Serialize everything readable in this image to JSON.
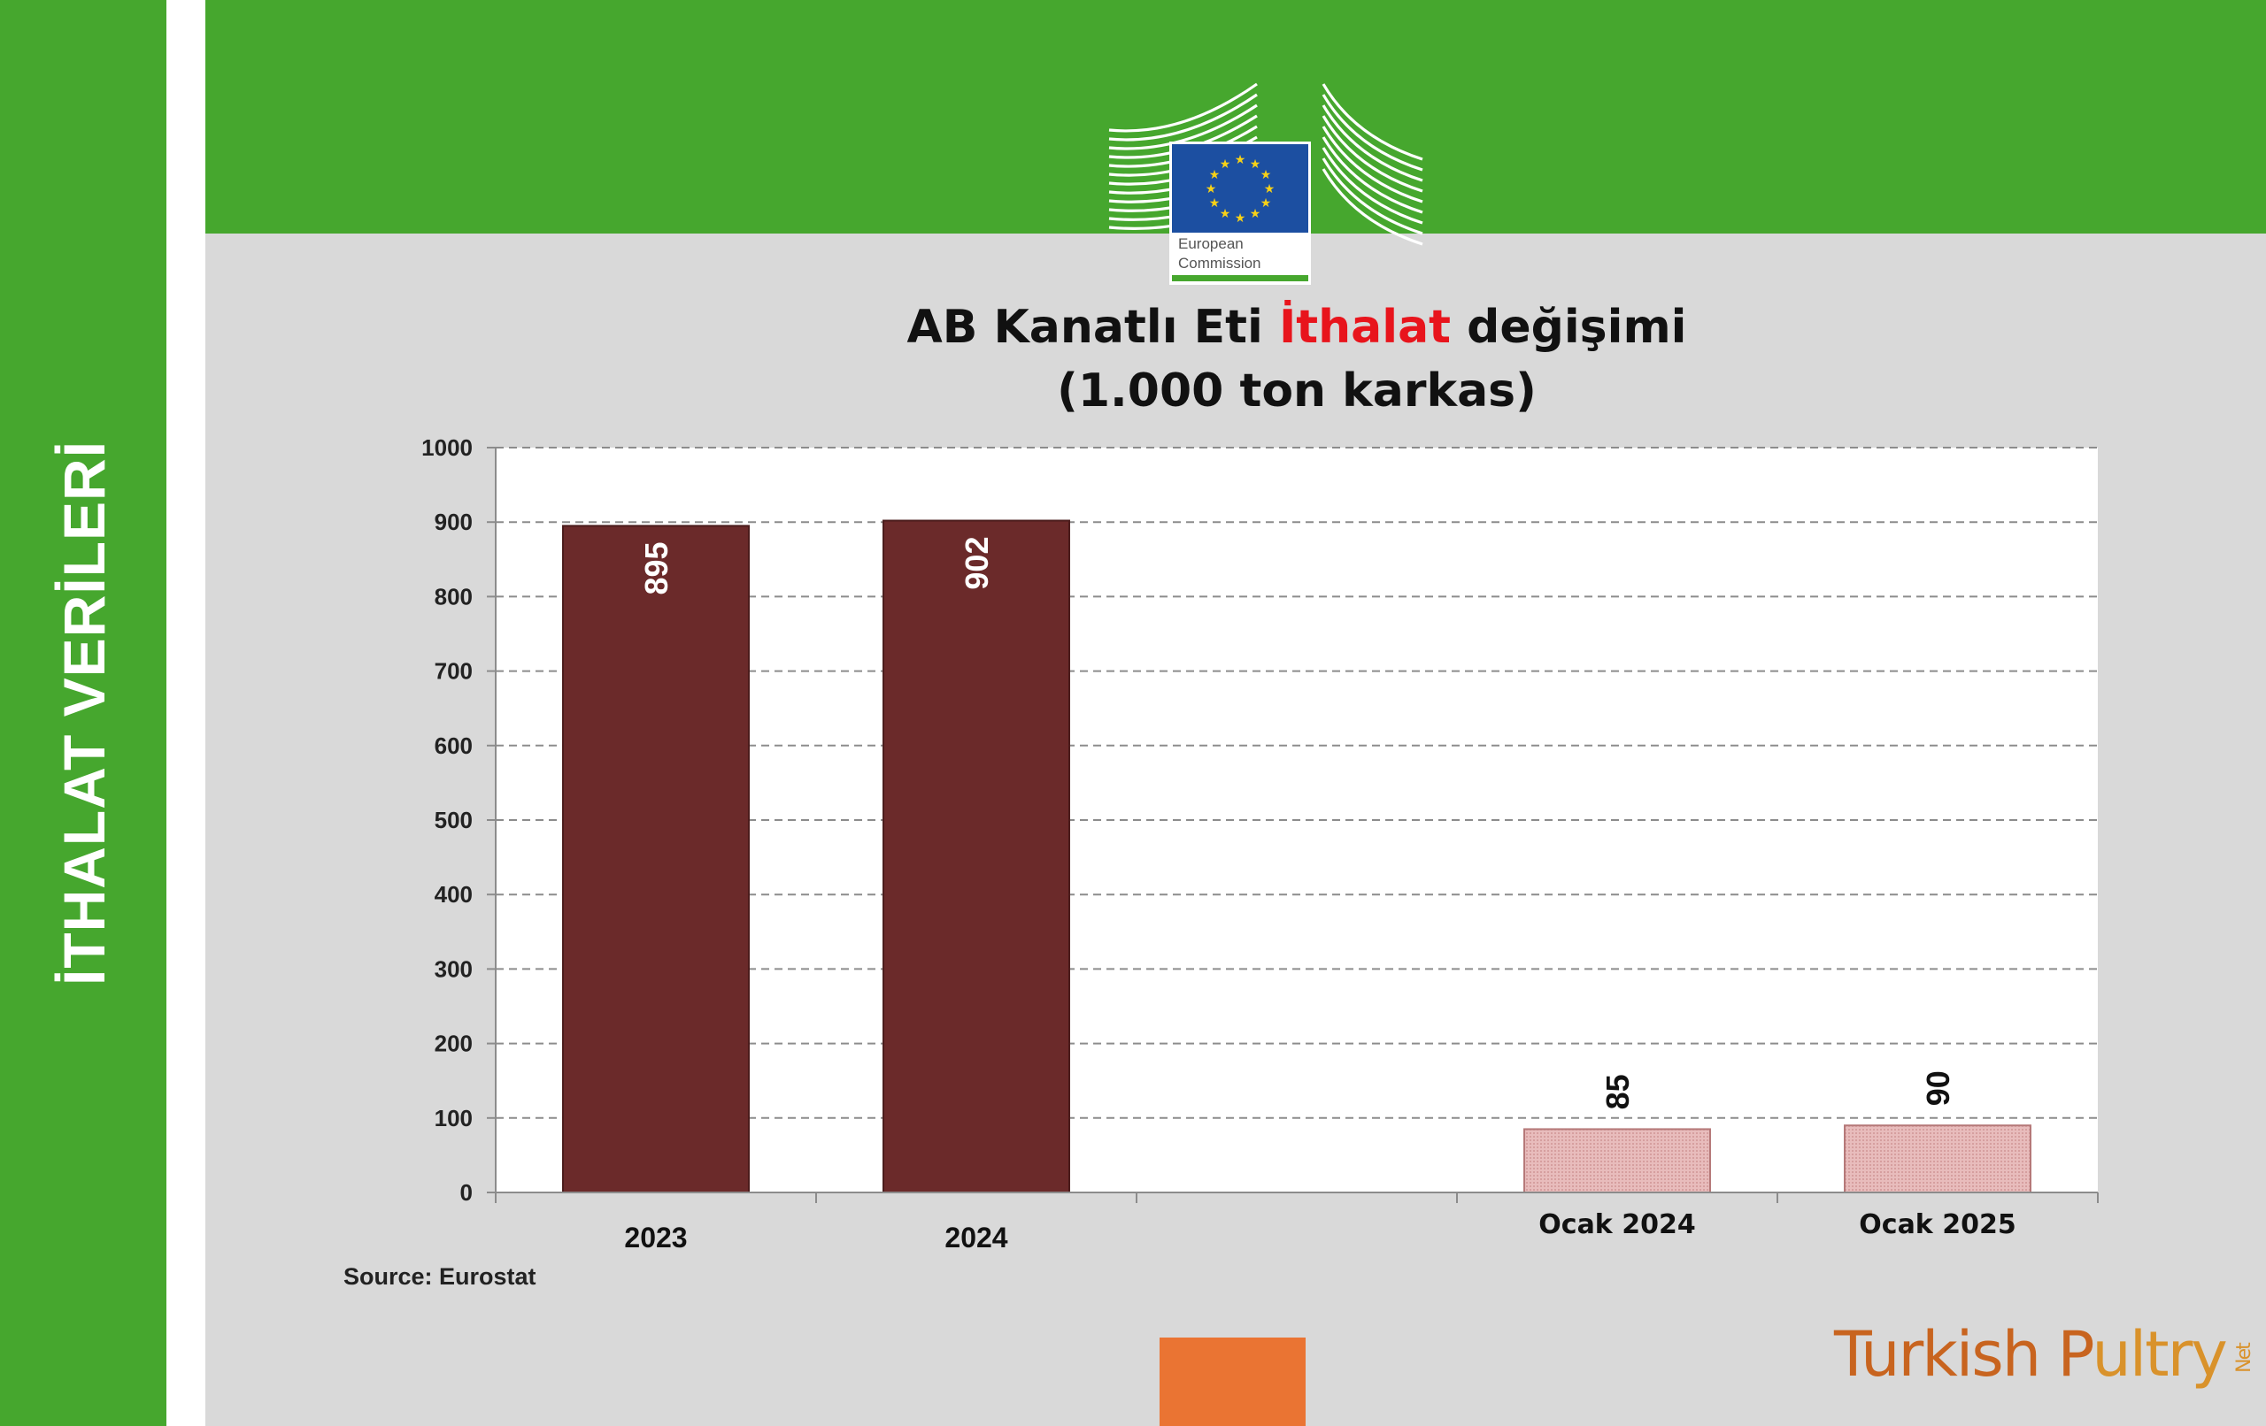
{
  "sidebar": {
    "title": "İTHALAT VERİLERİ"
  },
  "logo": {
    "line1": "European",
    "line2": "Commission"
  },
  "header": {
    "title_part1": "AB Kanatlı Eti ",
    "title_highlight": "İthalat",
    "title_part2": " değişimi",
    "subtitle": "(1.000 ton karkas)"
  },
  "source": "Source: Eurostat",
  "brand": {
    "part1": "Turkish P",
    "part2": "ultry",
    "net": "Net"
  },
  "colors": {
    "sidebar_green": "#46a72e",
    "annual_bar": "#6b2a2a",
    "monthly_bar": "#e6b7b7",
    "highlight_red": "#e8141c",
    "orange": "#ea7433"
  },
  "chart_data": {
    "type": "bar",
    "categories": [
      "2023",
      "2024",
      "",
      "Ocak 2024",
      "Ocak 2025"
    ],
    "values": [
      895,
      902,
      null,
      85,
      90
    ],
    "value_labels": [
      "895",
      "902",
      "",
      "85",
      "90"
    ],
    "bar_styles": [
      "annual",
      "annual",
      "",
      "monthly",
      "monthly"
    ],
    "ylim": [
      0,
      1000
    ],
    "yticks": [
      "0",
      "100",
      "200",
      "300",
      "400",
      "500",
      "600",
      "700",
      "800",
      "900",
      "1000"
    ],
    "grid": true
  }
}
